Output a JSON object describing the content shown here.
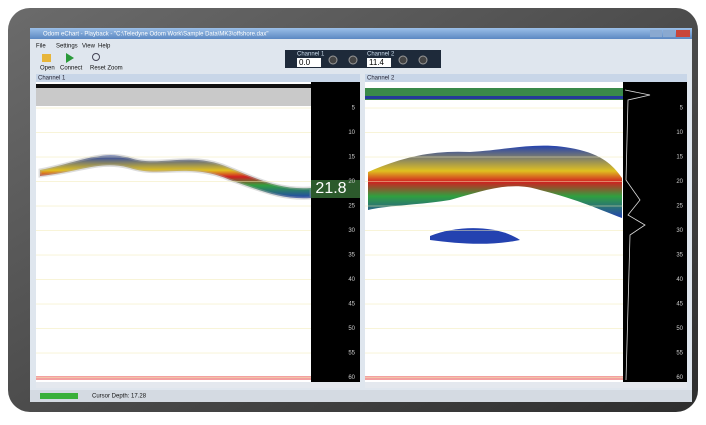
{
  "window": {
    "title": "Odom eChart - Playback - \"C:\\Teledyne Odom Work\\Sample Data\\MK3\\offshore.dax\""
  },
  "menu": [
    "File",
    "Settings",
    "View",
    "Help"
  ],
  "toolbar": [
    "Open",
    "Connect",
    "Reset Zoom"
  ],
  "channel_readouts": [
    {
      "label": "Channel 1",
      "value": "0.0"
    },
    {
      "label": "Channel 2",
      "value": "11.4"
    }
  ],
  "panes": [
    {
      "title": "Channel 1",
      "depth_scale": [
        5,
        10,
        15,
        20,
        25,
        30,
        35,
        40,
        45,
        50,
        55,
        60
      ],
      "cursor_depth": "21.8"
    },
    {
      "title": "Channel 2",
      "depth_scale": [
        5,
        10,
        15,
        20,
        25,
        30,
        35,
        40,
        45,
        50,
        55,
        60
      ]
    }
  ],
  "status": {
    "cursor_depth": "Cursor Depth: 17.28"
  }
}
